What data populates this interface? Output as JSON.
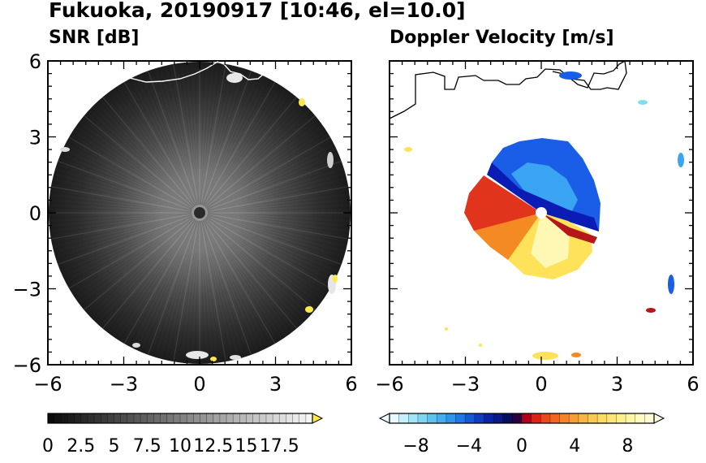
{
  "title": "Fukuoka, 20190917 [10:46, el=10.0]",
  "panels": {
    "left_title": "SNR [dB]",
    "right_title": "Doppler Velocity [m/s]"
  },
  "axes": {
    "y_ticks": [
      "6",
      "3",
      "0",
      "−3",
      "−6"
    ],
    "x_ticks": [
      "−6",
      "−3",
      "0",
      "3",
      "6"
    ]
  },
  "colorbars": {
    "snr": {
      "ticks": [
        "0",
        "2.5",
        "5",
        "7.5",
        "10",
        "12.5",
        "15",
        "17.5"
      ],
      "range": [
        0,
        20
      ],
      "extend": "max"
    },
    "velocity": {
      "ticks": [
        "−8",
        "−4",
        "0",
        "4",
        "8"
      ],
      "range": [
        -10,
        10
      ],
      "extend": "both"
    }
  },
  "chart_data": [
    {
      "type": "heatmap",
      "title": "SNR [dB]",
      "xlim": [
        -6,
        6
      ],
      "ylim": [
        -6,
        6
      ],
      "x_ticks": [
        -6,
        -3,
        0,
        3,
        6
      ],
      "y_ticks": [
        -6,
        -3,
        0,
        3,
        6
      ],
      "colorbar": {
        "min": 0,
        "max": 20,
        "ticks": [
          0,
          2.5,
          5,
          7.5,
          10,
          12.5,
          15,
          17.5
        ],
        "colormap": "grayscale"
      }
    },
    {
      "type": "heatmap",
      "title": "Doppler Velocity [m/s]",
      "xlim": [
        -6,
        6
      ],
      "ylim": [
        -6,
        6
      ],
      "x_ticks": [
        -6,
        -3,
        0,
        3,
        6
      ],
      "y_ticks": [
        -6,
        -3,
        0,
        3,
        6
      ],
      "colorbar": {
        "min": -10,
        "max": 10,
        "ticks": [
          -8,
          -4,
          0,
          4,
          8
        ],
        "colormap": "blue-red"
      }
    }
  ],
  "colors": {
    "snr_background": "#1e1e1e",
    "coast": "#ffffff",
    "echo_yellow": "#ffe94a"
  }
}
